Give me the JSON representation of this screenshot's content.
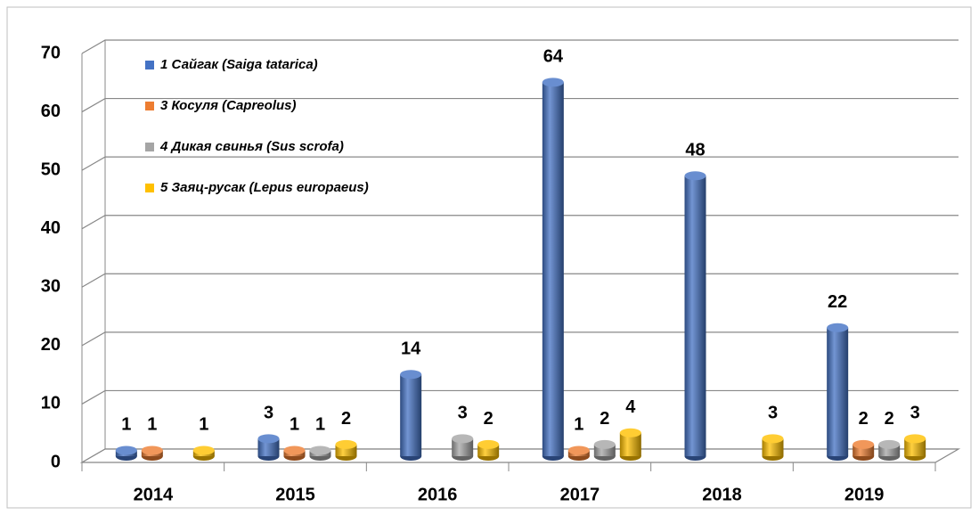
{
  "chart_data": {
    "type": "bar",
    "categories": [
      "2014",
      "2015",
      "2016",
      "2017",
      "2018",
      "2019"
    ],
    "series": [
      {
        "name": "1 Сайгак (Saiga tatarica)",
        "color": "#4472c4",
        "values": [
          1,
          3,
          14,
          64,
          48,
          22
        ]
      },
      {
        "name": "3 Косуля (Capreolus)",
        "color": "#ed7d31",
        "values": [
          1,
          1,
          null,
          1,
          null,
          2
        ]
      },
      {
        "name": "4 Дикая свинья (Sus scrofa)",
        "color": "#a5a5a5",
        "values": [
          null,
          1,
          3,
          2,
          null,
          2
        ]
      },
      {
        "name": "5 Заяц-русак (Lepus europaeus)",
        "color": "#ffc000",
        "values": [
          1,
          2,
          2,
          4,
          3,
          3
        ]
      }
    ],
    "ylim": [
      0,
      70
    ],
    "yticks": [
      0,
      10,
      20,
      30,
      40,
      50,
      60,
      70
    ],
    "grid": true,
    "legend": "top-left"
  }
}
